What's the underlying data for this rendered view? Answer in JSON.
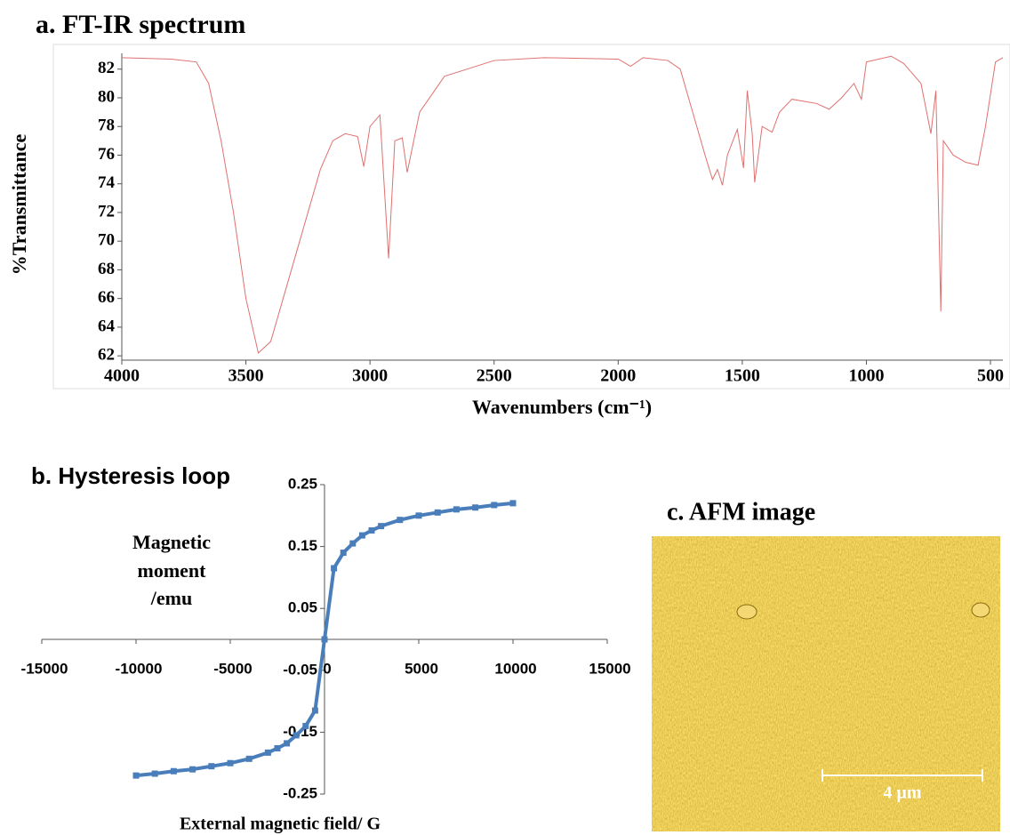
{
  "chart_data": [
    {
      "type": "line",
      "title": "a. FT-IR spectrum",
      "x_label": "Wavenumbers (cm⁻¹)",
      "y_label": "%Transmittance",
      "x": [
        4000,
        3800,
        3700,
        3650,
        3600,
        3550,
        3500,
        3450,
        3400,
        3350,
        3300,
        3250,
        3200,
        3150,
        3100,
        3050,
        3025,
        3000,
        2960,
        2925,
        2900,
        2870,
        2850,
        2800,
        2700,
        2500,
        2300,
        2000,
        1950,
        1900,
        1800,
        1750,
        1700,
        1650,
        1620,
        1600,
        1580,
        1560,
        1520,
        1495,
        1480,
        1460,
        1450,
        1420,
        1380,
        1350,
        1300,
        1200,
        1150,
        1100,
        1050,
        1020,
        1000,
        900,
        850,
        780,
        740,
        720,
        700,
        690,
        650,
        600,
        550,
        520,
        480,
        450
      ],
      "series": [
        {
          "color": "#e07070",
          "values": [
            82.8,
            82.7,
            82.5,
            81,
            77,
            72,
            66,
            62.2,
            63,
            66,
            69,
            72,
            75,
            77,
            77.5,
            77.3,
            75.2,
            78,
            78.8,
            68.8,
            77,
            77.2,
            74.8,
            79,
            81.5,
            82.6,
            82.8,
            82.7,
            82.2,
            82.8,
            82.6,
            82,
            79,
            76,
            74.3,
            75,
            73.9,
            76,
            77.8,
            75.1,
            80.5,
            77.5,
            74.1,
            78,
            77.6,
            79,
            79.9,
            79.6,
            79.2,
            80,
            81,
            79.9,
            82.5,
            82.9,
            82.4,
            81,
            77.5,
            80.5,
            65.1,
            77,
            76,
            75.5,
            75.3,
            78,
            82.5,
            82.8
          ]
        }
      ],
      "xlim": [
        4000,
        450
      ],
      "xticks": [
        4000,
        3500,
        3000,
        2500,
        2000,
        1500,
        1000,
        500
      ],
      "ylim": [
        61.7,
        83.1
      ],
      "yticks": [
        62,
        64,
        66,
        68,
        70,
        72,
        74,
        76,
        78,
        80,
        82
      ]
    },
    {
      "type": "line",
      "title": "b. Hysteresis loop",
      "x_label": "External magnetic field/ G",
      "y_label": [
        "Magnetic",
        "moment",
        "/emu"
      ],
      "x": [
        -10000,
        -9000,
        -8000,
        -7000,
        -6000,
        -5000,
        -4000,
        -3000,
        -2500,
        -2000,
        -1500,
        -1000,
        -500,
        0,
        500,
        1000,
        1500,
        2000,
        2500,
        3000,
        4000,
        5000,
        6000,
        7000,
        8000,
        9000,
        10000
      ],
      "series": [
        {
          "color": "#4a7ebb",
          "marker": "square",
          "values": [
            -0.22,
            -0.217,
            -0.213,
            -0.21,
            -0.205,
            -0.2,
            -0.193,
            -0.183,
            -0.176,
            -0.168,
            -0.155,
            -0.14,
            -0.115,
            0,
            0.115,
            0.14,
            0.155,
            0.168,
            0.176,
            0.183,
            0.193,
            0.2,
            0.205,
            0.21,
            0.213,
            0.217,
            0.22
          ]
        }
      ],
      "xlim": [
        -15000,
        15000
      ],
      "xticks": [
        -15000,
        -10000,
        -5000,
        0,
        5000,
        10000,
        15000
      ],
      "ylim": [
        -0.25,
        0.25
      ],
      "yticks": [
        -0.25,
        -0.15,
        -0.05,
        0.05,
        0.15,
        0.25
      ]
    },
    {
      "type": "image",
      "title": "c. AFM image",
      "scale_label": "4 µm"
    }
  ]
}
